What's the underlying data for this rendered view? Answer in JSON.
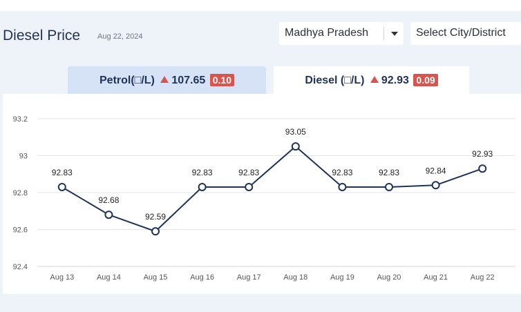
{
  "header": {
    "title": "Diesel Price",
    "date": "Aug 22, 2024",
    "state_select": "Madhya Pradesh",
    "city_select": "Select City/District"
  },
  "tabs": {
    "petrol": {
      "label": "Petrol(□/L)",
      "price": "107.65",
      "change": "0.10"
    },
    "diesel": {
      "label": "Diesel (□/L)",
      "price": "92.93",
      "change": "0.09"
    }
  },
  "colors": {
    "line": "#1f3257",
    "up_indicator": "#d9534f",
    "active_tab": "#ffffff",
    "inactive_tab": "#d6e2f5"
  },
  "chart_data": {
    "type": "line",
    "categories": [
      "Aug 13",
      "Aug 14",
      "Aug 15",
      "Aug 16",
      "Aug 17",
      "Aug 18",
      "Aug 19",
      "Aug 20",
      "Aug 21",
      "Aug 22"
    ],
    "values": [
      92.83,
      92.68,
      92.59,
      92.83,
      92.83,
      93.05,
      92.83,
      92.83,
      92.84,
      92.93
    ],
    "data_labels": [
      "92.83",
      "92.68",
      "92.59",
      "92.83",
      "92.83",
      "93.05",
      "92.83",
      "92.83",
      "92.84",
      "92.93"
    ],
    "yticks": [
      "92.4",
      "92.6",
      "92.8",
      "93",
      "93.2"
    ],
    "ylim": [
      92.4,
      93.2
    ],
    "grid": true
  }
}
